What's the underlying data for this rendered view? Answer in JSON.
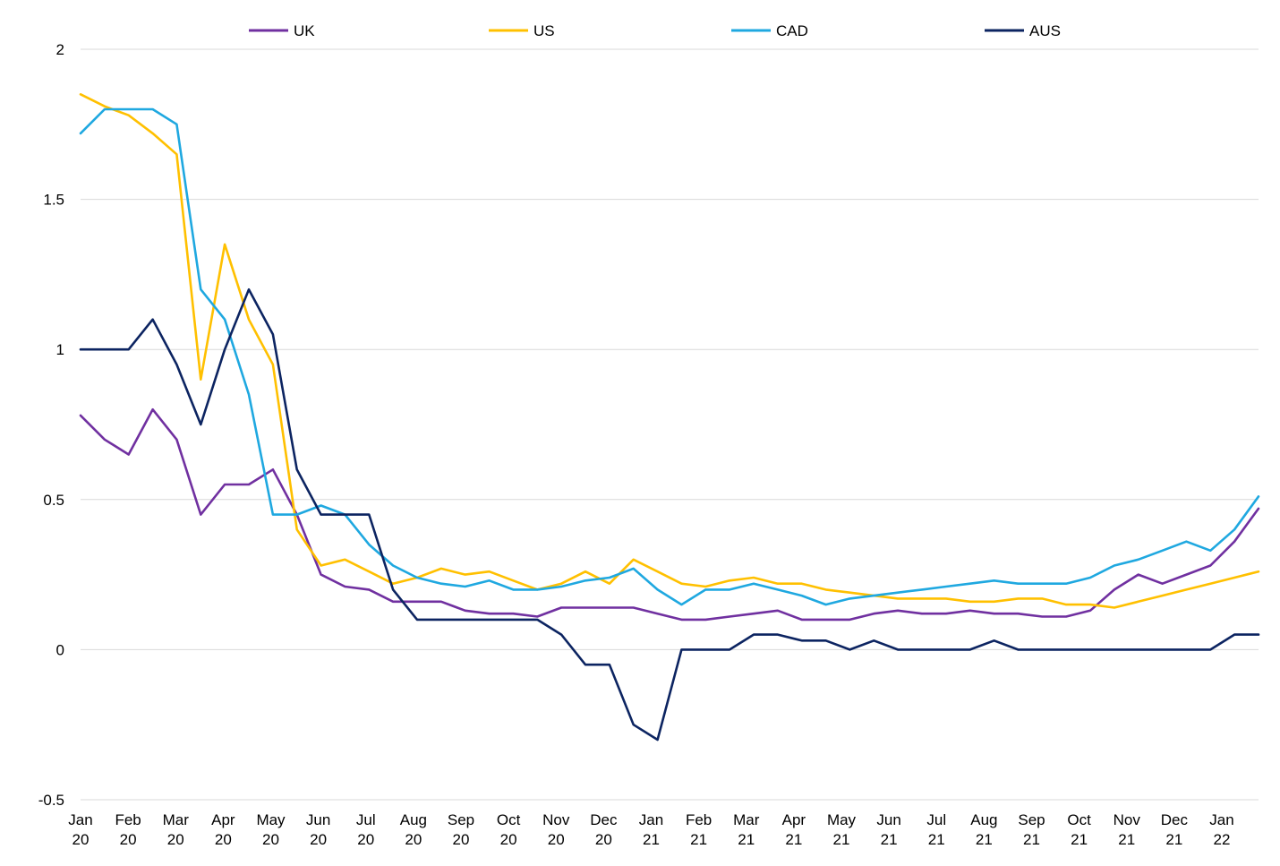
{
  "chart_data": {
    "type": "line",
    "title": "",
    "xlabel": "",
    "ylabel": "",
    "ylim": [
      -0.5,
      2
    ],
    "yticks": [
      "-0.5",
      "0",
      "0.5",
      "1",
      "1.5",
      "2"
    ],
    "xticks": [
      {
        "month": "Jan",
        "year": "20"
      },
      {
        "month": "Feb",
        "year": "20"
      },
      {
        "month": "Mar",
        "year": "20"
      },
      {
        "month": "Apr",
        "year": "20"
      },
      {
        "month": "May",
        "year": "20"
      },
      {
        "month": "Jun",
        "year": "20"
      },
      {
        "month": "Jul",
        "year": "20"
      },
      {
        "month": "Aug",
        "year": "20"
      },
      {
        "month": "Sep",
        "year": "20"
      },
      {
        "month": "Oct",
        "year": "20"
      },
      {
        "month": "Nov",
        "year": "20"
      },
      {
        "month": "Dec",
        "year": "20"
      },
      {
        "month": "Jan",
        "year": "21"
      },
      {
        "month": "Feb",
        "year": "21"
      },
      {
        "month": "Mar",
        "year": "21"
      },
      {
        "month": "Apr",
        "year": "21"
      },
      {
        "month": "May",
        "year": "21"
      },
      {
        "month": "Jun",
        "year": "21"
      },
      {
        "month": "Jul",
        "year": "21"
      },
      {
        "month": "Aug",
        "year": "21"
      },
      {
        "month": "Sep",
        "year": "21"
      },
      {
        "month": "Oct",
        "year": "21"
      },
      {
        "month": "Nov",
        "year": "21"
      },
      {
        "month": "Dec",
        "year": "21"
      },
      {
        "month": "Jan",
        "year": "22"
      }
    ],
    "x": [
      "Jan 20",
      "Jan 20",
      "Feb 20",
      "Feb 20",
      "Mar 20",
      "Mar 20",
      "Apr 20",
      "Apr 20",
      "May 20",
      "May 20",
      "Jun 20",
      "Jun 20",
      "Jul 20",
      "Jul 20",
      "Aug 20",
      "Aug 20",
      "Sep 20",
      "Sep 20",
      "Oct 20",
      "Oct 20",
      "Nov 20",
      "Nov 20",
      "Dec 20",
      "Dec 20",
      "Jan 21",
      "Jan 21",
      "Feb 21",
      "Feb 21",
      "Mar 21",
      "Mar 21",
      "Apr 21",
      "Apr 21",
      "May 21",
      "May 21",
      "Jun 21",
      "Jun 21",
      "Jul 21",
      "Jul 21",
      "Aug 21",
      "Aug 21",
      "Sep 21",
      "Sep 21",
      "Oct 21",
      "Oct 21",
      "Nov 21",
      "Nov 21",
      "Dec 21",
      "Dec 21",
      "Jan 22",
      "Jan 22"
    ],
    "legend_position": "top",
    "grid": true,
    "series": [
      {
        "name": "UK",
        "color": "#7030a0",
        "values": [
          0.78,
          0.7,
          0.65,
          0.8,
          0.7,
          0.45,
          0.55,
          0.55,
          0.6,
          0.45,
          0.25,
          0.21,
          0.2,
          0.16,
          0.16,
          0.16,
          0.13,
          0.12,
          0.12,
          0.11,
          0.14,
          0.14,
          0.14,
          0.14,
          0.12,
          0.1,
          0.1,
          0.11,
          0.12,
          0.13,
          0.1,
          0.1,
          0.1,
          0.12,
          0.13,
          0.12,
          0.12,
          0.13,
          0.12,
          0.12,
          0.11,
          0.11,
          0.13,
          0.2,
          0.25,
          0.22,
          0.25,
          0.28,
          0.36,
          0.47
        ]
      },
      {
        "name": "US",
        "color": "#ffc000",
        "values": [
          1.85,
          1.81,
          1.78,
          1.72,
          1.65,
          0.9,
          1.35,
          1.1,
          0.95,
          0.4,
          0.28,
          0.3,
          0.26,
          0.22,
          0.24,
          0.27,
          0.25,
          0.26,
          0.23,
          0.2,
          0.22,
          0.26,
          0.22,
          0.3,
          0.26,
          0.22,
          0.21,
          0.23,
          0.24,
          0.22,
          0.22,
          0.2,
          0.19,
          0.18,
          0.17,
          0.17,
          0.17,
          0.16,
          0.16,
          0.17,
          0.17,
          0.15,
          0.15,
          0.14,
          0.16,
          0.18,
          0.2,
          0.22,
          0.24,
          0.26
        ]
      },
      {
        "name": "CAD",
        "color": "#1fa8e0",
        "values": [
          1.72,
          1.8,
          1.8,
          1.8,
          1.75,
          1.2,
          1.1,
          0.85,
          0.45,
          0.45,
          0.48,
          0.45,
          0.35,
          0.28,
          0.24,
          0.22,
          0.21,
          0.23,
          0.2,
          0.2,
          0.21,
          0.23,
          0.24,
          0.27,
          0.2,
          0.15,
          0.2,
          0.2,
          0.22,
          0.2,
          0.18,
          0.15,
          0.17,
          0.18,
          0.19,
          0.2,
          0.21,
          0.22,
          0.23,
          0.22,
          0.22,
          0.22,
          0.24,
          0.28,
          0.3,
          0.33,
          0.36,
          0.33,
          0.4,
          0.51
        ]
      },
      {
        "name": "AUS",
        "color": "#0c2461",
        "values": [
          1.0,
          1.0,
          1.0,
          1.1,
          0.95,
          0.75,
          1.0,
          1.2,
          1.05,
          0.6,
          0.45,
          0.45,
          0.45,
          0.2,
          0.1,
          0.1,
          0.1,
          0.1,
          0.1,
          0.1,
          0.05,
          -0.05,
          -0.05,
          -0.25,
          -0.3,
          0.0,
          0.0,
          0.0,
          0.05,
          0.05,
          0.03,
          0.03,
          0.0,
          0.03,
          0.0,
          0.0,
          0.0,
          0.0,
          0.03,
          0.0,
          0.0,
          0.0,
          0.0,
          0.0,
          0.0,
          0.0,
          0.0,
          0.0,
          0.05,
          0.05
        ]
      }
    ]
  }
}
